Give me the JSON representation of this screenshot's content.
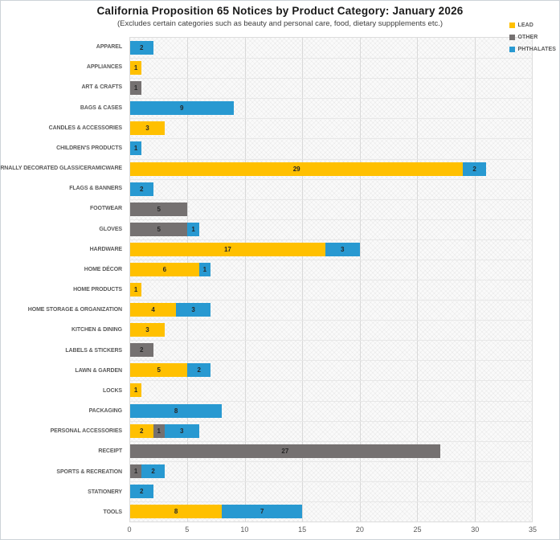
{
  "title": "California Proposition 65 Notices by Product Category: January 2026",
  "subtitle": "(Excludes certain categories such as beauty and personal care, food, dietary suppplements etc.)",
  "colors": {
    "lead": "#FFC000",
    "other": "#757171",
    "phthalates": "#2899D1",
    "gridline": "#d9d9d9",
    "plot_background": "#fafafa"
  },
  "chart_data": {
    "type": "bar",
    "orientation": "horizontal",
    "stacked": true,
    "title": "California Proposition 65 Notices by Product Category: January 2026",
    "subtitle": "(Excludes certain categories such as beauty and personal care, food, dietary suppplements etc.)",
    "xlabel": "",
    "ylabel": "",
    "xlim": [
      0,
      35
    ],
    "xticks": [
      0,
      5,
      10,
      15,
      20,
      25,
      30,
      35
    ],
    "grid": true,
    "legend_position": "top-right",
    "value_labels": true,
    "categories": [
      "APPAREL",
      "APPLIANCES",
      "ART & CRAFTS",
      "BAGS & CASES",
      "CANDLES & ACCESSORIES",
      "CHILDREN'S PRODUCTS",
      "EXTERNALLY DECORATED GLASS/CERAMICWARE",
      "FLAGS & BANNERS",
      "FOOTWEAR",
      "GLOVES",
      "HARDWARE",
      "HOME DÉCOR",
      "HOME PRODUCTS",
      "HOME STORAGE & ORGANIZATION",
      "KITCHEN & DINING",
      "LABELS & STICKERS",
      "LAWN & GARDEN",
      "LOCKS",
      "PACKAGING",
      "PERSONAL ACCESSORIES",
      "RECEIPT",
      "SPORTS & RECREATION",
      "STATIONERY",
      "TOOLS"
    ],
    "series": [
      {
        "name": "LEAD",
        "color_key": "lead",
        "values": [
          0,
          1,
          0,
          0,
          3,
          0,
          29,
          0,
          0,
          0,
          17,
          6,
          1,
          4,
          3,
          0,
          5,
          1,
          0,
          2,
          0,
          0,
          0,
          8
        ]
      },
      {
        "name": "OTHER",
        "color_key": "other",
        "values": [
          0,
          0,
          1,
          0,
          0,
          0,
          0,
          0,
          5,
          5,
          0,
          0,
          0,
          0,
          0,
          2,
          0,
          0,
          0,
          1,
          27,
          1,
          0,
          0
        ]
      },
      {
        "name": "PHTHALATES",
        "color_key": "phthalates",
        "values": [
          2,
          0,
          0,
          9,
          0,
          1,
          2,
          2,
          0,
          1,
          3,
          1,
          0,
          3,
          0,
          0,
          2,
          0,
          8,
          3,
          0,
          2,
          2,
          7
        ]
      }
    ]
  }
}
